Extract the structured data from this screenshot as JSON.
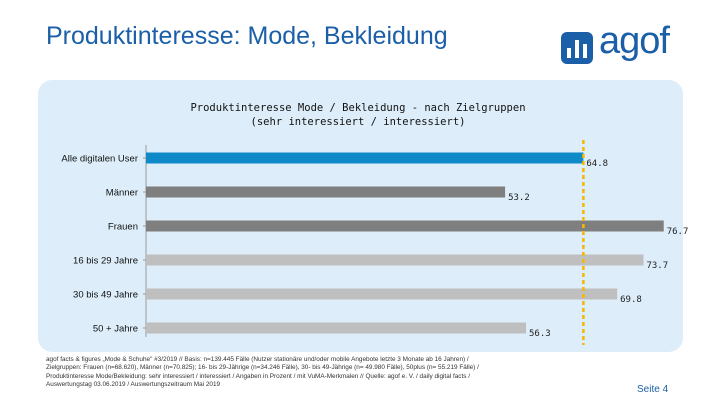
{
  "header": {
    "title": "Produktinteresse: Mode, Bekleidung",
    "logo_text": "agof"
  },
  "chart_data": {
    "type": "bar",
    "orientation": "horizontal",
    "title": "Produktinteresse Mode / Bekleidung - nach Zielgruppen",
    "subtitle": "(sehr interessiert / interessiert)",
    "categories": [
      "Alle digitalen User",
      "Männer",
      "Frauen",
      "16 bis 29 Jahre",
      "30 bis 49 Jahre",
      "50 + Jahre"
    ],
    "values": [
      64.8,
      53.2,
      76.7,
      73.7,
      69.8,
      56.3
    ],
    "value_labels": [
      "64.8",
      "53.2",
      "76.7",
      "73.7",
      "69.8",
      "56.3"
    ],
    "bar_colors": [
      "#0e8ac8",
      "#7f7f7f",
      "#7f7f7f",
      "#bfbfbf",
      "#bfbfbf",
      "#bfbfbf"
    ],
    "reference_line": {
      "value": 64.8,
      "color": "#f5b800",
      "style": "dashed"
    },
    "xlim": [
      0,
      80
    ],
    "grid": false,
    "legend": "none"
  },
  "footnote": {
    "lines": [
      "agof facts & figures „Mode & Schuhe\" #3/2019 // Basis: n=139.445 Fälle (Nutzer stationäre und/oder mobile Angebote letzte 3 Monate ab 16 Jahren) /",
      "Zielgruppen: Frauen (n=68.620), Männer (n=70.825); 16- bis 29-Jährige (n=34.246 Fälle), 30- bis 49-Jährige (n= 49.980 Fälle), 50plus (n= 55.219 Fälle) /",
      "Produktinteresse Mode/Bekleidung: sehr interessiert / interessiert / Angaben in Prozent / mit VuMA-Merkmalen // Quelle: agof e. V. / daily digital facts /",
      "Auswertungstag 03.06.2019 / Auswertungszeitraum Mai 2019"
    ]
  },
  "page": {
    "number_label": "Seite 4"
  }
}
